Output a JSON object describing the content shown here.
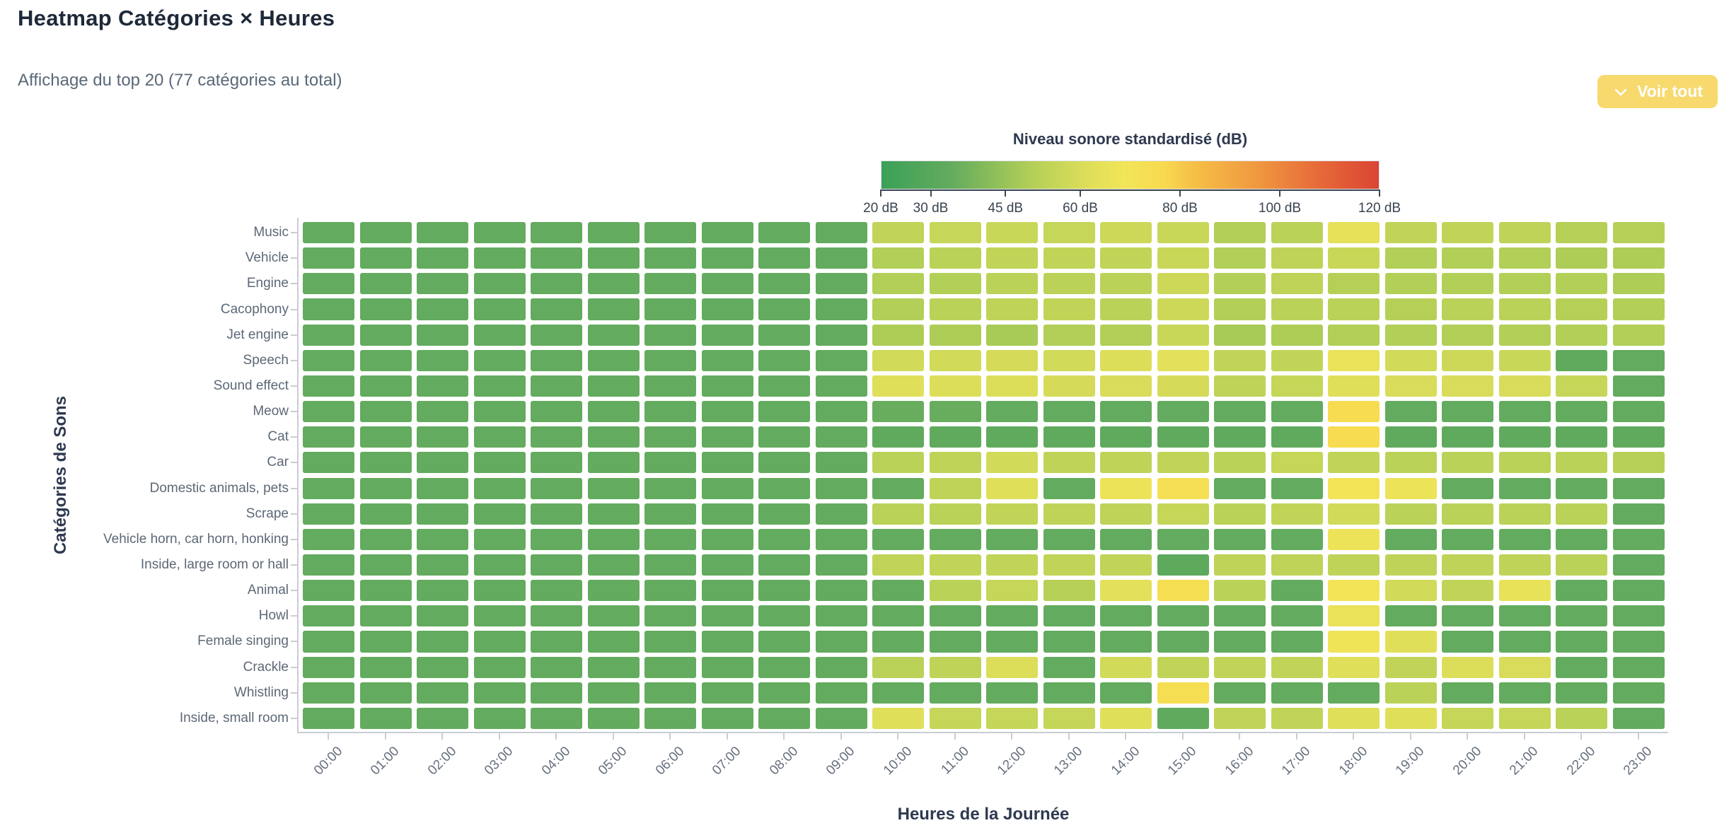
{
  "header": {
    "title": "Heatmap Catégories × Heures",
    "subtitle": "Affichage du top 20 (77 catégories au total)",
    "voir_tout_button": {
      "label": "Voir tout",
      "icon": "chevron-down",
      "background": "#F7D96E",
      "text_color": "#FFFFFF"
    }
  },
  "theme": {
    "title_color": "#1D2939",
    "subtitle_color": "#5A6878",
    "axis_title_color": "#2E3950",
    "y_tick_label_color": "#5D6876",
    "x_tick_label_color": "#67707E",
    "axis_line_color": "#C9CDD4",
    "colorbar_axis_color": "#3D4754",
    "accent_gold": "#F7D96E"
  },
  "chart_data": {
    "type": "heatmap",
    "xlabel": "Heures de la Journée",
    "ylabel": "Catégories de Sons",
    "value_unit": "dB",
    "x": [
      "00:00",
      "01:00",
      "02:00",
      "03:00",
      "04:00",
      "05:00",
      "06:00",
      "07:00",
      "08:00",
      "09:00",
      "10:00",
      "11:00",
      "12:00",
      "13:00",
      "14:00",
      "15:00",
      "16:00",
      "17:00",
      "18:00",
      "19:00",
      "20:00",
      "21:00",
      "22:00",
      "23:00"
    ],
    "y": [
      "Music",
      "Vehicle",
      "Engine",
      "Cacophony",
      "Jet engine",
      "Speech",
      "Sound effect",
      "Meow",
      "Cat",
      "Car",
      "Domestic animals, pets",
      "Scrape",
      "Vehicle horn, car horn, honking",
      "Inside, large room or hall",
      "Animal",
      "Howl",
      "Female singing",
      "Crackle",
      "Whistling",
      "Inside, small room"
    ],
    "values": [
      [
        34,
        34,
        34,
        34,
        34,
        34,
        34,
        34,
        34,
        34,
        54,
        55,
        56,
        55,
        57,
        56,
        50,
        52,
        64,
        54,
        54,
        53,
        51,
        51
      ],
      [
        34,
        34,
        34,
        34,
        34,
        34,
        34,
        34,
        34,
        34,
        50,
        52,
        54,
        54,
        54,
        56,
        50,
        53,
        56,
        50,
        50,
        50,
        49,
        49
      ],
      [
        34,
        34,
        34,
        34,
        34,
        34,
        34,
        34,
        34,
        34,
        50,
        50,
        52,
        52,
        52,
        57,
        50,
        53,
        51,
        50,
        50,
        50,
        50,
        49
      ],
      [
        34,
        34,
        34,
        34,
        34,
        34,
        34,
        34,
        34,
        34,
        50,
        52,
        53,
        54,
        52,
        57,
        50,
        52,
        52,
        51,
        52,
        52,
        51,
        50
      ],
      [
        34,
        34,
        34,
        34,
        34,
        34,
        34,
        34,
        34,
        34,
        49,
        49,
        48,
        50,
        50,
        56,
        48,
        49,
        50,
        50,
        50,
        50,
        50,
        50
      ],
      [
        34,
        34,
        34,
        34,
        34,
        34,
        34,
        34,
        34,
        34,
        58,
        58,
        59,
        58,
        61,
        63,
        54,
        54,
        66,
        58,
        57,
        56,
        33,
        34
      ],
      [
        34,
        34,
        34,
        34,
        34,
        34,
        34,
        34,
        34,
        34,
        62,
        61,
        61,
        59,
        60,
        59,
        53,
        55,
        62,
        60,
        60,
        60,
        55,
        34
      ],
      [
        34,
        34,
        34,
        34,
        34,
        34,
        34,
        34,
        34,
        34,
        35,
        35,
        34,
        34,
        34,
        34,
        34,
        34,
        75,
        34,
        34,
        34,
        34,
        34
      ],
      [
        34,
        34,
        34,
        34,
        34,
        34,
        34,
        34,
        34,
        34,
        33,
        33,
        33,
        33,
        33,
        33,
        33,
        33,
        75,
        33,
        33,
        33,
        33,
        33
      ],
      [
        34,
        34,
        34,
        34,
        34,
        34,
        34,
        34,
        34,
        34,
        52,
        53,
        58,
        53,
        53,
        54,
        52,
        55,
        54,
        52,
        52,
        52,
        52,
        51
      ],
      [
        34,
        34,
        34,
        34,
        34,
        34,
        34,
        34,
        34,
        34,
        34,
        53,
        62,
        34,
        67,
        73,
        34,
        34,
        70,
        67,
        34,
        34,
        34,
        34
      ],
      [
        34,
        34,
        34,
        34,
        34,
        34,
        34,
        34,
        34,
        34,
        52,
        52,
        54,
        53,
        53,
        55,
        52,
        54,
        58,
        52,
        52,
        52,
        52,
        34
      ],
      [
        34,
        34,
        34,
        34,
        34,
        34,
        34,
        34,
        34,
        34,
        34,
        34,
        34,
        34,
        34,
        34,
        34,
        34,
        67,
        34,
        34,
        34,
        34,
        34
      ],
      [
        34,
        34,
        34,
        34,
        34,
        34,
        34,
        34,
        34,
        34,
        54,
        54,
        54,
        54,
        54,
        32,
        53,
        53,
        53,
        53,
        53,
        53,
        52,
        34
      ],
      [
        34,
        34,
        34,
        34,
        34,
        34,
        34,
        34,
        34,
        34,
        34,
        52,
        55,
        51,
        63,
        74,
        52,
        34,
        70,
        58,
        54,
        65,
        34,
        34
      ],
      [
        34,
        34,
        34,
        34,
        34,
        34,
        34,
        34,
        34,
        34,
        34,
        34,
        34,
        34,
        34,
        34,
        34,
        34,
        66,
        34,
        34,
        34,
        34,
        34
      ],
      [
        34,
        34,
        34,
        34,
        34,
        34,
        34,
        34,
        34,
        34,
        34,
        34,
        34,
        34,
        34,
        34,
        34,
        34,
        68,
        62,
        34,
        34,
        34,
        34
      ],
      [
        34,
        34,
        34,
        34,
        34,
        34,
        34,
        34,
        34,
        34,
        52,
        53,
        61,
        34,
        58,
        54,
        54,
        54,
        62,
        54,
        61,
        60,
        34,
        34
      ],
      [
        34,
        34,
        34,
        34,
        34,
        34,
        34,
        34,
        34,
        34,
        34,
        34,
        34,
        34,
        34,
        74,
        34,
        34,
        34,
        52,
        34,
        34,
        34,
        34
      ],
      [
        34,
        34,
        34,
        34,
        34,
        34,
        34,
        34,
        34,
        34,
        62,
        55,
        55,
        55,
        62,
        33,
        54,
        54,
        62,
        62,
        55,
        55,
        52,
        34
      ]
    ],
    "colorbar": {
      "title": "Niveau sonore standardisé (dB)",
      "min": 20,
      "max": 120,
      "tick_values": [
        20,
        30,
        45,
        60,
        80,
        100,
        120
      ],
      "tick_labels": [
        "20 dB",
        "30 dB",
        "45 dB",
        "60 dB",
        "80 dB",
        "100 dB",
        "120 dB"
      ]
    },
    "colorscale": [
      [
        0.0,
        "#3BA158"
      ],
      [
        0.14,
        "#63AB5E"
      ],
      [
        0.3,
        "#B2CF57"
      ],
      [
        0.42,
        "#E0DF5A"
      ],
      [
        0.49,
        "#F2E558"
      ],
      [
        0.57,
        "#F8D94F"
      ],
      [
        0.62,
        "#F6C247"
      ],
      [
        0.75,
        "#F09A40"
      ],
      [
        0.88,
        "#E66A39"
      ],
      [
        1.0,
        "#DA4533"
      ]
    ],
    "grid": false,
    "legend_position": "top-center-above-plot"
  }
}
